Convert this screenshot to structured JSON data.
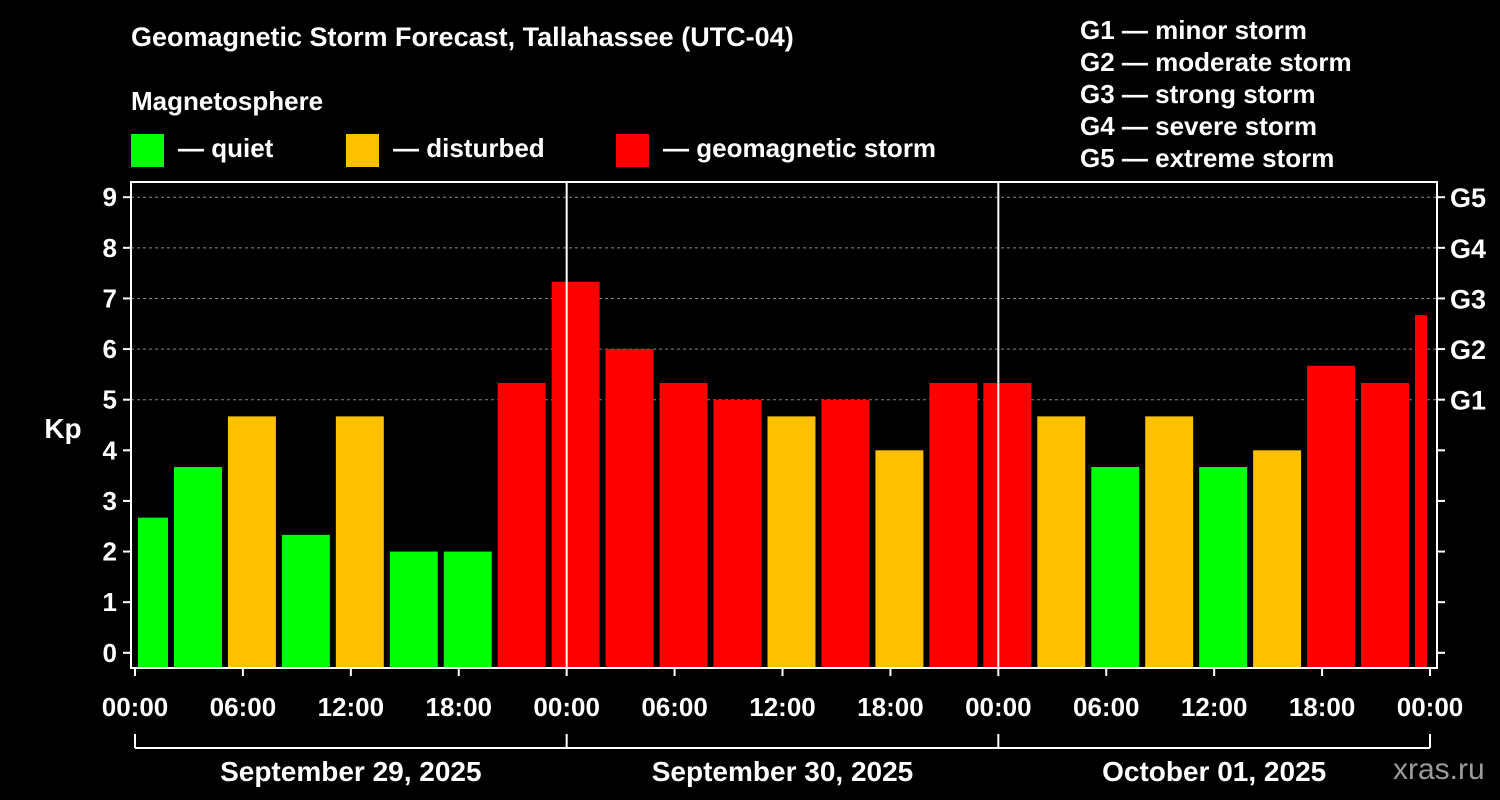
{
  "title": "Geomagnetic Storm Forecast, Tallahassee (UTC-04)",
  "magnetosphere": {
    "heading": "Magnetosphere",
    "legend": [
      {
        "label": "— quiet",
        "color": "#00ff00"
      },
      {
        "label": "— disturbed",
        "color": "#ffc000"
      },
      {
        "label": "— geomagnetic storm",
        "color": "#ff0000"
      }
    ]
  },
  "storm_scale": [
    "G1 — minor storm",
    "G2 — moderate storm",
    "G3 — strong storm",
    "G4 — severe storm",
    "G5 — extreme storm"
  ],
  "watermark": "xras.ru",
  "chart_data": {
    "type": "bar",
    "ylabel": "Kp",
    "ylim": [
      -0.3,
      9.3
    ],
    "y_ticks": [
      0,
      1,
      2,
      3,
      4,
      5,
      6,
      7,
      8,
      9
    ],
    "right_ticks": [
      {
        "kp": 5,
        "label": "G1"
      },
      {
        "kp": 6,
        "label": "G2"
      },
      {
        "kp": 7,
        "label": "G3"
      },
      {
        "kp": 8,
        "label": "G4"
      },
      {
        "kp": 9,
        "label": "G5"
      }
    ],
    "x_range_hours": [
      0,
      72
    ],
    "x_tick_labels": [
      "00:00",
      "06:00",
      "12:00",
      "18:00",
      "00:00",
      "06:00",
      "12:00",
      "18:00",
      "00:00",
      "06:00",
      "12:00",
      "18:00",
      "00:00"
    ],
    "day_labels": [
      "September 29, 2025",
      "September 30, 2025",
      "October 01, 2025"
    ],
    "bars": [
      {
        "start": 0,
        "end": 2,
        "kp": 2.67,
        "level": "quiet"
      },
      {
        "start": 2,
        "end": 5,
        "kp": 3.67,
        "level": "quiet"
      },
      {
        "start": 5,
        "end": 8,
        "kp": 4.67,
        "level": "disturbed"
      },
      {
        "start": 8,
        "end": 11,
        "kp": 2.33,
        "level": "quiet"
      },
      {
        "start": 11,
        "end": 14,
        "kp": 4.67,
        "level": "disturbed"
      },
      {
        "start": 14,
        "end": 17,
        "kp": 2.0,
        "level": "quiet"
      },
      {
        "start": 17,
        "end": 20,
        "kp": 2.0,
        "level": "quiet"
      },
      {
        "start": 20,
        "end": 23,
        "kp": 5.33,
        "level": "storm"
      },
      {
        "start": 23,
        "end": 26,
        "kp": 7.33,
        "level": "storm"
      },
      {
        "start": 26,
        "end": 29,
        "kp": 6.0,
        "level": "storm"
      },
      {
        "start": 29,
        "end": 32,
        "kp": 5.33,
        "level": "storm"
      },
      {
        "start": 32,
        "end": 35,
        "kp": 5.0,
        "level": "storm"
      },
      {
        "start": 35,
        "end": 38,
        "kp": 4.67,
        "level": "disturbed"
      },
      {
        "start": 38,
        "end": 41,
        "kp": 5.0,
        "level": "storm"
      },
      {
        "start": 41,
        "end": 44,
        "kp": 4.0,
        "level": "disturbed"
      },
      {
        "start": 44,
        "end": 47,
        "kp": 5.33,
        "level": "storm"
      },
      {
        "start": 47,
        "end": 50,
        "kp": 5.33,
        "level": "storm"
      },
      {
        "start": 50,
        "end": 53,
        "kp": 4.67,
        "level": "disturbed"
      },
      {
        "start": 53,
        "end": 56,
        "kp": 3.67,
        "level": "quiet"
      },
      {
        "start": 56,
        "end": 59,
        "kp": 4.67,
        "level": "disturbed"
      },
      {
        "start": 59,
        "end": 62,
        "kp": 3.67,
        "level": "quiet"
      },
      {
        "start": 62,
        "end": 65,
        "kp": 4.0,
        "level": "disturbed"
      },
      {
        "start": 65,
        "end": 68,
        "kp": 5.67,
        "level": "storm"
      },
      {
        "start": 68,
        "end": 71,
        "kp": 5.33,
        "level": "storm"
      },
      {
        "start": 71,
        "end": 72,
        "kp": 6.67,
        "level": "storm"
      }
    ],
    "colors": {
      "quiet": "#00ff00",
      "disturbed": "#ffc000",
      "storm": "#ff0000"
    }
  }
}
